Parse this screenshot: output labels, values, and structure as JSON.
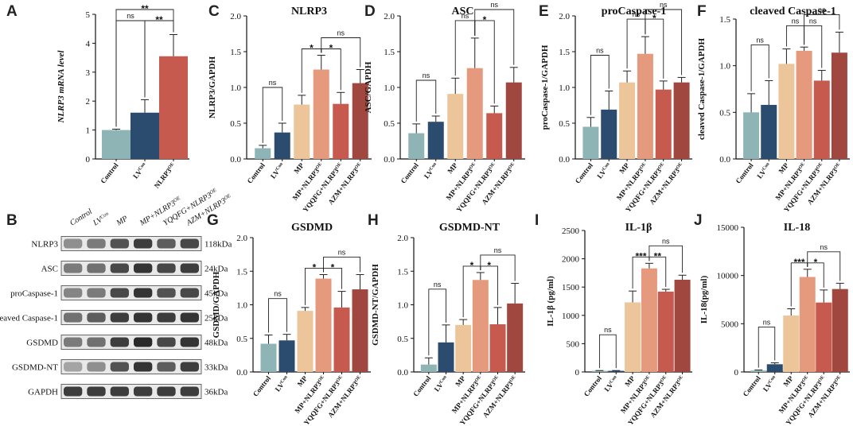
{
  "colors": [
    "#8fb4b6",
    "#2b4c6f",
    "#ecc69a",
    "#e59a7d",
    "#c75a4e",
    "#a0473f"
  ],
  "western": {
    "label": "B",
    "lanes": [
      "Control",
      "LV^Con",
      "MP",
      "MP+NLRP3^OE",
      "YQQFG+NLRP3^OE",
      "AZM+NLRP3^OE"
    ],
    "rows": [
      {
        "protein": "NLRP3",
        "kda": "118kDa",
        "intensity": [
          0.45,
          0.55,
          0.75,
          0.85,
          0.7,
          0.8
        ]
      },
      {
        "protein": "ASC",
        "kda": "24kDa",
        "intensity": [
          0.55,
          0.6,
          0.8,
          0.9,
          0.8,
          0.85
        ]
      },
      {
        "protein": "proCaspase-1",
        "kda": "45kDa",
        "intensity": [
          0.5,
          0.55,
          0.8,
          0.9,
          0.75,
          0.8
        ]
      },
      {
        "protein": "cleaved Caspase-1",
        "kda": "25kDa",
        "intensity": [
          0.6,
          0.7,
          0.85,
          0.9,
          0.85,
          0.9
        ]
      },
      {
        "protein": "GSDMD",
        "kda": "48kDa",
        "intensity": [
          0.55,
          0.6,
          0.85,
          0.95,
          0.8,
          0.9
        ]
      },
      {
        "protein": "GSDMD-NT",
        "kda": "33kDa",
        "intensity": [
          0.35,
          0.45,
          0.75,
          0.9,
          0.7,
          0.85
        ]
      },
      {
        "protein": "GAPDH",
        "kda": "36kDa",
        "intensity": [
          0.85,
          0.85,
          0.85,
          0.85,
          0.85,
          0.85
        ]
      }
    ]
  },
  "chart_data": [
    {
      "label": "A",
      "type": "bar",
      "title": "",
      "ylabel": "NLRP3 mRNA level",
      "categories": [
        "Control",
        "LV^Con",
        "NLRP3^OE"
      ],
      "values": [
        1.0,
        1.6,
        3.55
      ],
      "errors": [
        0.03,
        0.45,
        0.75
      ],
      "ylim": [
        0,
        5
      ],
      "yticks": [
        0,
        1,
        2,
        3,
        4,
        5
      ],
      "ytick_labels": [
        "0",
        "1",
        "2",
        "3",
        "4",
        "5"
      ],
      "color_idx": [
        0,
        1,
        4
      ],
      "sig": [
        {
          "from": 1,
          "to": 2,
          "text": "**",
          "level": 1
        },
        {
          "from": 0,
          "to": 2,
          "text": "**",
          "level": 2
        },
        {
          "from": 0,
          "to": 1,
          "text": "ns",
          "level": 1
        }
      ]
    },
    {
      "label": "C",
      "type": "bar",
      "title": "NLRP3",
      "ylabel": "NLRP3/GAPDH",
      "categories": [
        "Control",
        "LV^Con",
        "MP",
        "MP+NLRP3^OE",
        "YQQFG+NLRP3^OE",
        "AZM+NLRP3^OE"
      ],
      "values": [
        0.15,
        0.37,
        0.76,
        1.25,
        0.77,
        1.06
      ],
      "errors": [
        0.04,
        0.13,
        0.13,
        0.2,
        0.16,
        0.19
      ],
      "ylim": [
        0,
        2.0
      ],
      "yticks": [
        0,
        0.5,
        1.0,
        1.5,
        2.0
      ],
      "ytick_labels": [
        "0.0",
        "0.5",
        "1.0",
        "1.5",
        "2.0"
      ],
      "color_idx": [
        0,
        1,
        2,
        3,
        4,
        5
      ],
      "sig": [
        {
          "from": 0,
          "to": 1,
          "text": "ns",
          "level": 2
        },
        {
          "from": 2,
          "to": 3,
          "text": "*",
          "level": 1
        },
        {
          "from": 3,
          "to": 4,
          "text": "*",
          "level": 1
        },
        {
          "from": 3,
          "to": 5,
          "text": "ns",
          "level": 2
        }
      ]
    },
    {
      "label": "D",
      "type": "bar",
      "title": "ASC",
      "ylabel": "ASC/GAPDH",
      "categories": [
        "Control",
        "LV^Con",
        "MP",
        "MP+NLRP3^OE",
        "YQQFG+NLRP3^OE",
        "AZM+NLRP3^OE"
      ],
      "values": [
        0.36,
        0.52,
        0.91,
        1.27,
        0.64,
        1.07
      ],
      "errors": [
        0.13,
        0.08,
        0.22,
        0.42,
        0.1,
        0.21
      ],
      "ylim": [
        0,
        2.0
      ],
      "yticks": [
        0,
        0.5,
        1.0,
        1.5,
        2.0
      ],
      "ytick_labels": [
        "0.0",
        "0.5",
        "1.0",
        "1.5",
        "2.0"
      ],
      "color_idx": [
        0,
        1,
        2,
        3,
        4,
        5
      ],
      "sig": [
        {
          "from": 0,
          "to": 1,
          "text": "ns",
          "level": 2
        },
        {
          "from": 2,
          "to": 3,
          "text": "ns",
          "level": 2
        },
        {
          "from": 3,
          "to": 4,
          "text": "*",
          "level": 2
        },
        {
          "from": 3,
          "to": 5,
          "text": "ns",
          "level": 3
        }
      ]
    },
    {
      "label": "E",
      "type": "bar",
      "title": "proCaspase-1",
      "ylabel": "proCaspase-1/GAPDH",
      "categories": [
        "Control",
        "LV^Con",
        "MP",
        "MP+NLRP3^OE",
        "YQQFG+NLRP3^OE",
        "AZM+NLRP3^OE"
      ],
      "values": [
        0.45,
        0.69,
        1.07,
        1.47,
        0.97,
        1.07
      ],
      "errors": [
        0.13,
        0.26,
        0.16,
        0.24,
        0.12,
        0.07
      ],
      "ylim": [
        0,
        2.0
      ],
      "yticks": [
        0,
        0.5,
        1.0,
        1.5,
        2.0
      ],
      "ytick_labels": [
        "0.0",
        "0.5",
        "1.0",
        "1.5",
        "2.0"
      ],
      "color_idx": [
        0,
        1,
        2,
        3,
        4,
        5
      ],
      "sig": [
        {
          "from": 0,
          "to": 1,
          "text": "ns",
          "level": 2
        },
        {
          "from": 2,
          "to": 3,
          "text": "ns",
          "level": 2
        },
        {
          "from": 3,
          "to": 4,
          "text": "*",
          "level": 2
        },
        {
          "from": 3,
          "to": 5,
          "text": "ns",
          "level": 3
        }
      ]
    },
    {
      "label": "F",
      "type": "bar",
      "title": "cleaved Caspase-1",
      "ylabel": "cleaved Caspase-1/GAPDH",
      "categories": [
        "Control",
        "LV^Con",
        "MP",
        "MP+NLRP3^OE",
        "YQQFG+NLRP3^OE",
        "AZM+NLRP3^OE"
      ],
      "values": [
        0.5,
        0.58,
        1.02,
        1.16,
        0.84,
        1.14
      ],
      "errors": [
        0.2,
        0.26,
        0.16,
        0.04,
        0.11,
        0.22
      ],
      "ylim": [
        0,
        1.5
      ],
      "yticks": [
        0,
        0.5,
        1.0,
        1.5
      ],
      "ytick_labels": [
        "0.0",
        "0.5",
        "1.0",
        "1.5"
      ],
      "color_idx": [
        0,
        1,
        2,
        3,
        4,
        5
      ],
      "sig": [
        {
          "from": 0,
          "to": 1,
          "text": "ns",
          "level": 2
        },
        {
          "from": 2,
          "to": 3,
          "text": "ns",
          "level": 1
        },
        {
          "from": 3,
          "to": 4,
          "text": "ns",
          "level": 1
        },
        {
          "from": 3,
          "to": 5,
          "text": "ns",
          "level": 2
        }
      ]
    },
    {
      "label": "G",
      "type": "bar",
      "title": "GSDMD",
      "ylabel": "GSDMD/GAPDH",
      "categories": [
        "Control",
        "LV^Con",
        "MP",
        "MP+NLRP3^OE",
        "YQQFG+NLRP3^OE",
        "AZM+NLRP3^OE"
      ],
      "values": [
        0.42,
        0.47,
        0.91,
        1.39,
        0.96,
        1.23
      ],
      "errors": [
        0.13,
        0.09,
        0.05,
        0.06,
        0.24,
        0.22
      ],
      "ylim": [
        0,
        2.0
      ],
      "yticks": [
        0,
        0.5,
        1.0,
        1.5,
        2.0
      ],
      "ytick_labels": [
        "0.0",
        "0.5",
        "1.0",
        "1.5",
        "2.0"
      ],
      "color_idx": [
        0,
        1,
        2,
        3,
        4,
        5
      ],
      "sig": [
        {
          "from": 0,
          "to": 1,
          "text": "ns",
          "level": 2
        },
        {
          "from": 2,
          "to": 3,
          "text": "*",
          "level": 1
        },
        {
          "from": 3,
          "to": 4,
          "text": "*",
          "level": 1
        },
        {
          "from": 3,
          "to": 5,
          "text": "ns",
          "level": 2
        }
      ]
    },
    {
      "label": "H",
      "type": "bar",
      "title": "GSDMD-NT",
      "ylabel": "GSDMD-NT/GAPDH",
      "categories": [
        "Control",
        "LV^Con",
        "MP",
        "MP+NLRP3^OE",
        "YQQFG+NLRP3^OE",
        "AZM+NLRP3^OE"
      ],
      "values": [
        0.11,
        0.44,
        0.7,
        1.37,
        0.71,
        1.02
      ],
      "errors": [
        0.1,
        0.26,
        0.08,
        0.11,
        0.25,
        0.3
      ],
      "ylim": [
        0,
        2.0
      ],
      "yticks": [
        0,
        0.5,
        1.0,
        1.5,
        2.0
      ],
      "ytick_labels": [
        "0.0",
        "0.5",
        "1.0",
        "1.5",
        "2.0"
      ],
      "color_idx": [
        0,
        1,
        2,
        3,
        4,
        5
      ],
      "sig": [
        {
          "from": 0,
          "to": 1,
          "text": "ns",
          "level": 2
        },
        {
          "from": 2,
          "to": 3,
          "text": "*",
          "level": 1
        },
        {
          "from": 3,
          "to": 4,
          "text": "*",
          "level": 1
        },
        {
          "from": 3,
          "to": 5,
          "text": "ns",
          "level": 2
        }
      ]
    },
    {
      "label": "I",
      "type": "bar",
      "title": "IL-1β",
      "ylabel": "IL-1β (pg/ml)",
      "categories": [
        "Control",
        "LV^Con",
        "MP",
        "MP+NLRP3^OE",
        "YQQFG+NLRP3^OE",
        "AZM+NLRP3^OE"
      ],
      "values": [
        20,
        20,
        1230,
        1830,
        1420,
        1630
      ],
      "errors": [
        5,
        5,
        200,
        90,
        40,
        80
      ],
      "ylim": [
        0,
        2500
      ],
      "yticks": [
        0,
        500,
        1000,
        1500,
        2000,
        2500
      ],
      "ytick_labels": [
        "0",
        "500",
        "1000",
        "1500",
        "2000",
        "2500"
      ],
      "color_idx": [
        0,
        1,
        2,
        3,
        4,
        5
      ],
      "sig": [
        {
          "from": 0,
          "to": 1,
          "text": "ns",
          "level": 2
        },
        {
          "from": 2,
          "to": 3,
          "text": "***",
          "level": 1
        },
        {
          "from": 3,
          "to": 4,
          "text": "**",
          "level": 1
        },
        {
          "from": 3,
          "to": 5,
          "text": "ns",
          "level": 2
        }
      ]
    },
    {
      "label": "J",
      "type": "bar",
      "title": "IL-18",
      "ylabel": "IL-18(pg/ml)",
      "categories": [
        "Control",
        "LV^Con",
        "MP",
        "MP+NLRP3^OE",
        "YQQFG+NLRP3^OE",
        "AZM+NLRP3^OE"
      ],
      "values": [
        150,
        800,
        5850,
        9850,
        7200,
        8600
      ],
      "errors": [
        50,
        150,
        700,
        800,
        1300,
        600
      ],
      "ylim": [
        0,
        15000
      ],
      "yticks": [
        0,
        5000,
        10000,
        15000
      ],
      "ytick_labels": [
        "0",
        "5000",
        "10000",
        "15000"
      ],
      "color_idx": [
        0,
        1,
        2,
        3,
        4,
        5
      ],
      "sig": [
        {
          "from": 0,
          "to": 1,
          "text": "ns",
          "level": 2
        },
        {
          "from": 2,
          "to": 3,
          "text": "***",
          "level": 1
        },
        {
          "from": 3,
          "to": 4,
          "text": "*",
          "level": 1
        },
        {
          "from": 3,
          "to": 5,
          "text": "ns",
          "level": 2
        }
      ]
    }
  ]
}
